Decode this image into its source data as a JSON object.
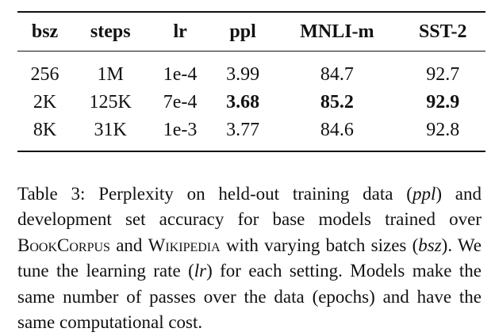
{
  "table": {
    "header": [
      "bsz",
      "steps",
      "lr",
      "ppl",
      "MNLI-m",
      "SST-2"
    ],
    "rows": [
      [
        "256",
        "1M",
        "1e-4",
        "3.99",
        "84.7",
        "92.7"
      ],
      [
        "2K",
        "125K",
        "7e-4",
        "3.68",
        "85.2",
        "92.9"
      ],
      [
        "8K",
        "31K",
        "1e-3",
        "3.77",
        "84.6",
        "92.8"
      ]
    ]
  },
  "caption": [
    "Table 3: Perplexity on held-out training data (",
    "ppl",
    ") and development set accuracy for base models trained over ",
    "BookCorpus",
    " and ",
    "Wikipedia",
    " with varying batch sizes (",
    "bsz",
    "). We tune the learning rate (",
    "lr",
    ") for each setting. Models make the same number of passes over the data (epochs) and have the same computational cost."
  ]
}
